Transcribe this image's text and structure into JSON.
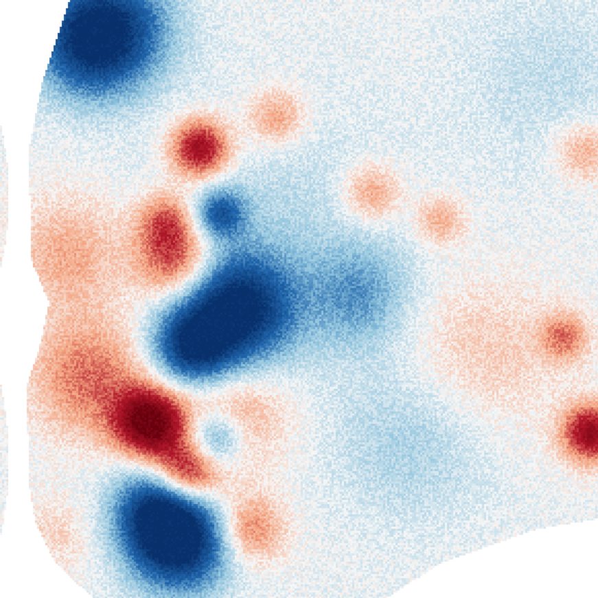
{
  "colormap": {
    "name": "RdBu_r",
    "negative_dark": "#08306b",
    "negative_mid": "#4a8ac2",
    "neutral": "#f7f7f7",
    "positive_mid": "#e0987a",
    "positive_dark": "#67000d"
  },
  "background_color": "#ffffff"
}
